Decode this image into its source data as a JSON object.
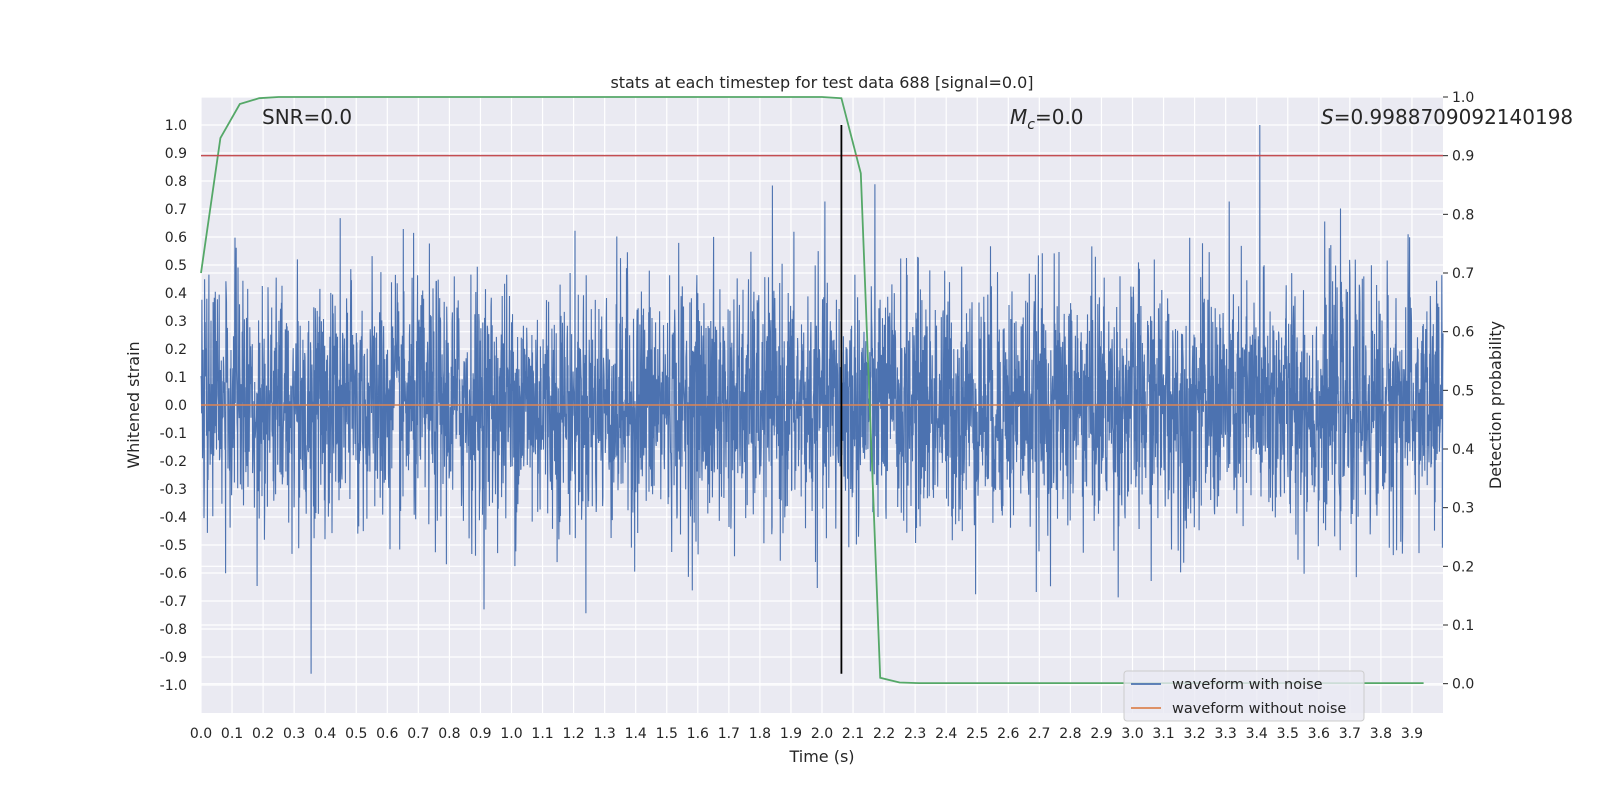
{
  "chart_data": {
    "type": "line",
    "title": "stats at each timestep for test data 688 [signal=0.0]",
    "xlabel": "Time (s)",
    "ylabel": "Whitened strain",
    "y2label": "Detection probability",
    "xlim": [
      0.0,
      4.0
    ],
    "ylim": [
      -1.1,
      1.1
    ],
    "y2lim": [
      -0.05,
      1.0
    ],
    "grid": true,
    "x_ticks": [
      "0.0",
      "0.1",
      "0.2",
      "0.3",
      "0.4",
      "0.5",
      "0.6",
      "0.7",
      "0.8",
      "0.9",
      "1.0",
      "1.1",
      "1.2",
      "1.3",
      "1.4",
      "1.5",
      "1.6",
      "1.7",
      "1.8",
      "1.9",
      "2.0",
      "2.1",
      "2.2",
      "2.3",
      "2.4",
      "2.5",
      "2.6",
      "2.7",
      "2.8",
      "2.9",
      "3.0",
      "3.1",
      "3.2",
      "3.3",
      "3.4",
      "3.5",
      "3.6",
      "3.7",
      "3.8",
      "3.9"
    ],
    "y_ticks": [
      "1.0",
      "0.9",
      "0.8",
      "0.7",
      "0.6",
      "0.5",
      "0.4",
      "0.3",
      "0.2",
      "0.1",
      "0.0",
      "-0.1",
      "-0.2",
      "-0.3",
      "-0.4",
      "-0.5",
      "-0.6",
      "-0.7",
      "-0.8",
      "-0.9",
      "-1.0"
    ],
    "y2_ticks": [
      "1.0",
      "0.9",
      "0.8",
      "0.7",
      "0.6",
      "0.5",
      "0.4",
      "0.3",
      "0.2",
      "0.1",
      "0.0"
    ],
    "annotations": {
      "snr": "SNR=0.0",
      "mc_symbol": "M",
      "mc_sub": "c",
      "mc_value": "=0.0",
      "s_symbol": "S",
      "s_value": "=0.9988709092140198"
    },
    "legend": {
      "placement": "lower-right",
      "entries": [
        "waveform with noise",
        "waveform without noise"
      ]
    },
    "series": [
      {
        "name": "waveform with noise",
        "color": "#4c72b0",
        "axis": "left",
        "kind": "noise",
        "peak_max": 1.0,
        "peak_min": -0.96
      },
      {
        "name": "waveform without noise",
        "color": "#dd8452",
        "axis": "left",
        "x": [
          0.0,
          4.0
        ],
        "y": [
          0.0,
          0.0
        ]
      },
      {
        "name": "",
        "color": "#55a868",
        "axis": "right",
        "x": [
          0.0,
          0.0625,
          0.125,
          0.1875,
          0.25,
          0.3125,
          2.0,
          2.0625,
          2.125,
          2.1875,
          2.25,
          2.3125,
          3.9375
        ],
        "y": [
          0.7,
          0.93,
          0.988,
          0.998,
          1.0,
          1.0,
          1.0,
          0.998,
          0.87,
          0.01,
          0.002,
          0.001,
          0.001
        ]
      }
    ],
    "threshold": {
      "axis": "right",
      "value": 0.9,
      "color": "#c44e52"
    },
    "marker": {
      "x": 2.0625,
      "y_from": -0.96,
      "y_to": 1.0,
      "color": "#000000"
    }
  }
}
